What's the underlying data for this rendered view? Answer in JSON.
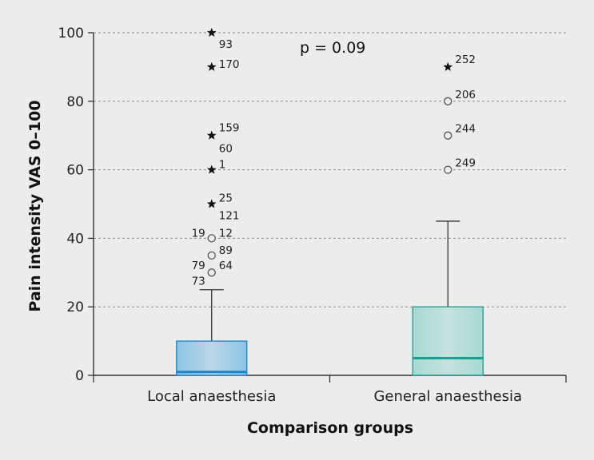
{
  "chart_data": {
    "type": "boxplot",
    "title": "",
    "xlabel": "Comparison groups",
    "ylabel": "Pain intensity VAS 0–100",
    "ylim": [
      0,
      100
    ],
    "yticks": [
      0,
      20,
      40,
      60,
      80,
      100
    ],
    "grid": "horizontal dashed",
    "annotation": "p = 0.09",
    "categories": [
      "Local anaesthesia",
      "General anaesthesia"
    ],
    "boxes": [
      {
        "name": "Local anaesthesia",
        "color": "#5aaee3",
        "median_color": "#1a84c8",
        "q1": 0,
        "median": 1,
        "q3": 10,
        "whisker_low": 0,
        "whisker_high": 25,
        "outliers": [
          {
            "value": 30,
            "labels": [
              {
                "text": "73",
                "side": "left",
                "dy": 10
              }
            ]
          },
          {
            "value": 35,
            "labels": [
              {
                "text": "79",
                "side": "left",
                "dy": 12
              },
              {
                "text": "89",
                "side": "right",
                "dy": -7
              },
              {
                "text": "64",
                "side": "right",
                "dy": 12
              }
            ]
          },
          {
            "value": 40,
            "labels": [
              {
                "text": "19",
                "side": "left",
                "dy": -7
              },
              {
                "text": "12",
                "side": "right",
                "dy": -7
              }
            ]
          }
        ],
        "extremes": [
          {
            "value": 50,
            "labels": [
              {
                "text": "25",
                "side": "right",
                "dy": -8
              },
              {
                "text": "121",
                "side": "right",
                "dy": 14
              }
            ]
          },
          {
            "value": 60,
            "labels": [
              {
                "text": "1",
                "side": "right",
                "dy": -7
              }
            ]
          },
          {
            "value": 70,
            "labels": [
              {
                "text": "159",
                "side": "right",
                "dy": -10
              },
              {
                "text": "60",
                "side": "right",
                "dy": 16
              }
            ]
          },
          {
            "value": 90,
            "labels": [
              {
                "text": "170",
                "side": "right",
                "dy": -4
              }
            ]
          },
          {
            "value": 100,
            "labels": [
              {
                "text": "93",
                "side": "right",
                "dy": 14
              }
            ]
          }
        ]
      },
      {
        "name": "General anaesthesia",
        "color": "#7fd0c6",
        "median_color": "#1a9e8f",
        "q1": 0,
        "median": 5,
        "q3": 20,
        "whisker_low": 0,
        "whisker_high": 45,
        "outliers": [
          {
            "value": 60,
            "labels": [
              {
                "text": "249",
                "side": "right",
                "dy": -9
              }
            ]
          },
          {
            "value": 70,
            "labels": [
              {
                "text": "244",
                "side": "right",
                "dy": -9
              }
            ]
          },
          {
            "value": 80,
            "labels": [
              {
                "text": "206",
                "side": "right",
                "dy": -9
              }
            ]
          }
        ],
        "extremes": [
          {
            "value": 90,
            "labels": [
              {
                "text": "252",
                "side": "right",
                "dy": -10
              }
            ]
          }
        ]
      }
    ]
  }
}
